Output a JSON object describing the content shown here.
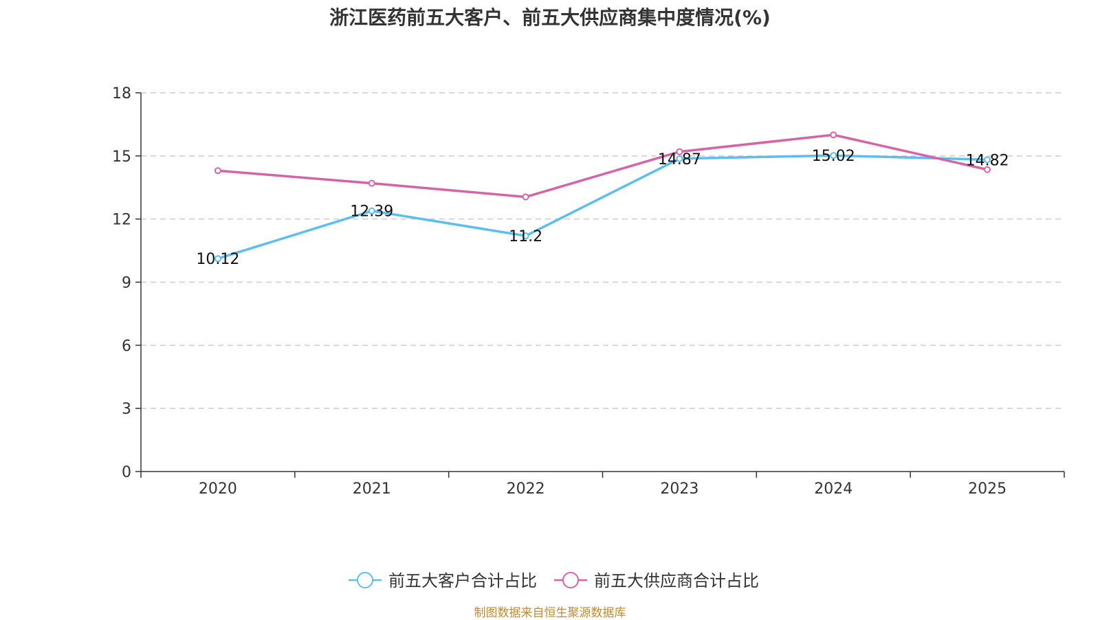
{
  "title": "浙江医药前五大客户、前五大供应商集中度情况(%)",
  "source": "制图数据来自恒生聚源数据库",
  "chart_data": {
    "type": "line",
    "title": "浙江医药前五大客户、前五大供应商集中度情况(%)",
    "categories": [
      "2020",
      "2021",
      "2022",
      "2023",
      "2024",
      "2025"
    ],
    "ylim": [
      0,
      18
    ],
    "yticks": [
      0,
      3,
      6,
      9,
      12,
      15,
      18
    ],
    "grid": true,
    "legend_position": "bottom",
    "xlabel": "",
    "ylabel": "",
    "series": [
      {
        "name": "前五大客户合计占比",
        "values": [
          10.12,
          12.39,
          11.2,
          14.87,
          15.02,
          14.82
        ],
        "labels": [
          "10.12",
          "12.39",
          "11.2",
          "14.87",
          "15.02",
          "14.82"
        ],
        "color": "#5bbdf0"
      },
      {
        "name": "前五大供应商合计占比",
        "values": [
          14.3,
          13.7,
          13.05,
          15.2,
          16.0,
          14.35
        ],
        "color": "#d463a8"
      }
    ]
  }
}
